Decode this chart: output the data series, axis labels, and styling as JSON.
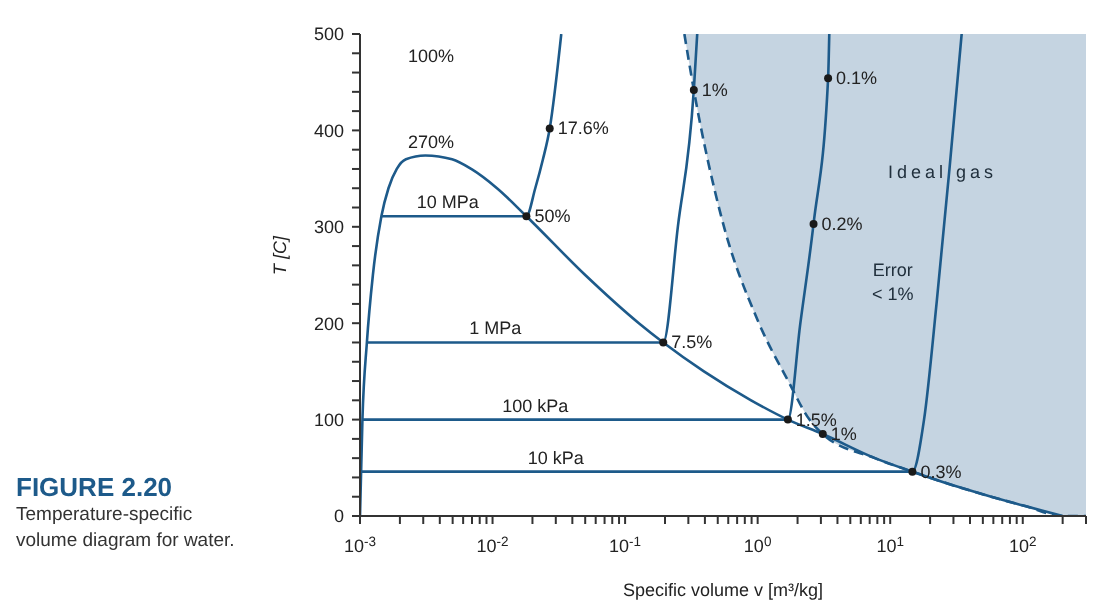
{
  "chart_data": {
    "type": "line",
    "xlabel": "Specific volume v [m³/kg]",
    "ylabel": "T [C]",
    "log": "x",
    "xlim": [
      0.001,
      300
    ],
    "ylim": [
      0,
      500
    ],
    "xticks": [
      {
        "value": 0.001,
        "label": "10$^{-3}$"
      },
      {
        "value": 0.002,
        "label": null
      },
      {
        "value": 0.003,
        "label": null
      },
      {
        "value": 0.004,
        "label": null
      },
      {
        "value": 0.005,
        "label": null
      },
      {
        "value": 0.006,
        "label": null
      },
      {
        "value": 0.007,
        "label": null
      },
      {
        "value": 0.008,
        "label": null
      },
      {
        "value": 0.009,
        "label": null
      },
      {
        "value": 0.01,
        "label": "10$^{-2}$"
      },
      {
        "value": 0.02,
        "label": null
      },
      {
        "value": 0.03,
        "label": null
      },
      {
        "value": 0.04,
        "label": null
      },
      {
        "value": 0.05,
        "label": null
      },
      {
        "value": 0.06,
        "label": null
      },
      {
        "value": 0.07,
        "label": null
      },
      {
        "value": 0.08,
        "label": null
      },
      {
        "value": 0.09,
        "label": null
      },
      {
        "value": 0.1,
        "label": "10$^{-1}$"
      },
      {
        "value": 0.2,
        "label": null
      },
      {
        "value": 0.3,
        "label": null
      },
      {
        "value": 0.4,
        "label": null
      },
      {
        "value": 0.5,
        "label": null
      },
      {
        "value": 0.6,
        "label": null
      },
      {
        "value": 0.7,
        "label": null
      },
      {
        "value": 0.8,
        "label": null
      },
      {
        "value": 0.9,
        "label": null
      },
      {
        "value": 1,
        "label": "10$^{0}$"
      },
      {
        "value": 2,
        "label": null
      },
      {
        "value": 3,
        "label": null
      },
      {
        "value": 4,
        "label": null
      },
      {
        "value": 5,
        "label": null
      },
      {
        "value": 6,
        "label": null
      },
      {
        "value": 7,
        "label": null
      },
      {
        "value": 8,
        "label": null
      },
      {
        "value": 9,
        "label": null
      },
      {
        "value": 10,
        "label": "10$^{1}$"
      },
      {
        "value": 20,
        "label": null
      },
      {
        "value": 30,
        "label": null
      },
      {
        "value": 40,
        "label": null
      },
      {
        "value": 50,
        "label": null
      },
      {
        "value": 60,
        "label": null
      },
      {
        "value": 70,
        "label": null
      },
      {
        "value": 80,
        "label": null
      },
      {
        "value": 90,
        "label": null
      },
      {
        "value": 100,
        "label": "10$^{2}$"
      },
      {
        "value": 200,
        "label": null
      },
      {
        "value": 300,
        "label": null
      }
    ],
    "yticks": [
      0,
      {
        "value": 20,
        "label": null
      },
      {
        "value": 40,
        "label": null
      },
      {
        "value": 60,
        "label": null
      },
      {
        "value": 80,
        "label": null
      },
      100,
      {
        "value": 120,
        "label": null
      },
      {
        "value": 140,
        "label": null
      },
      {
        "value": 160,
        "label": null
      },
      {
        "value": 180,
        "label": null
      },
      200,
      {
        "value": 220,
        "label": null
      },
      {
        "value": 240,
        "label": null
      },
      {
        "value": 260,
        "label": null
      },
      {
        "value": 280,
        "label": null
      },
      300,
      {
        "value": 320,
        "label": null
      },
      {
        "value": 340,
        "label": null
      },
      {
        "value": 360,
        "label": null
      },
      {
        "value": 380,
        "label": null
      },
      400,
      {
        "value": 420,
        "label": null
      },
      {
        "value": 440,
        "label": null
      },
      {
        "value": 460,
        "label": null
      },
      {
        "value": 480,
        "label": null
      },
      500
    ],
    "series": [
      {
        "color": "#1d5a8a",
        "line_style": "dashed",
        "x": [
          0.28,
          0.33,
          0.54,
          1.0,
          1.7,
          2.46,
          3.1,
          7.67,
          14.7,
          32.9,
          57.8,
          106,
          200,
          300
        ],
        "values": [
          500,
          442,
          307,
          203,
          140,
          100,
          85,
          60,
          46,
          30,
          20,
          10,
          0,
          0
        ],
        "lower": [
          500,
          442,
          307,
          203,
          140,
          100,
          85,
          60,
          46,
          30,
          20,
          10,
          0,
          0
        ],
        "upper": [
          500,
          500,
          500,
          500,
          500,
          500,
          500,
          500,
          500,
          500,
          500,
          500,
          500,
          500
        ]
      },
      {
        "color": "#1d5a8a",
        "x": [
          0.001,
          0.001043,
          0.001127,
          0.001251,
          0.00145,
          0.00164,
          0.001895,
          0.00222,
          0.00311,
          0.00495,
          0.0069,
          0.0108,
          0.018,
          0.05,
          0.127,
          0.194,
          0.393,
          0.892,
          1.69,
          3.1,
          7.67,
          14.7,
          32.9,
          57.8,
          106,
          200
        ],
        "values": [
          0,
          100,
          180,
          250,
          311,
          340,
          360,
          370,
          374,
          370,
          360,
          340,
          311,
          250,
          200,
          180,
          150,
          120,
          100,
          85,
          60,
          46,
          30,
          20,
          10,
          0
        ]
      },
      {
        "color": "#1d5a8a",
        "x": [
          0.00145,
          0.018,
          0.021,
          0.024,
          0.027,
          0.033
        ],
        "values": [
          311,
          311,
          340,
          370,
          402,
          500
        ]
      },
      {
        "color": "#1d5a8a",
        "x": [
          0.00113,
          0.194,
          0.25,
          0.33,
          0.35
        ],
        "values": [
          180,
          180,
          300,
          442,
          500
        ]
      },
      {
        "color": "#1d5a8a",
        "x": [
          0.00104,
          1.69,
          2.1,
          2.64,
          3.4,
          3.47
        ],
        "values": [
          100,
          100,
          200,
          303,
          454,
          500
        ]
      },
      {
        "color": "#1d5a8a",
        "x": [
          0.00101,
          14.7,
          18,
          22.5,
          28,
          34.6
        ],
        "values": [
          46,
          46,
          100,
          224,
          360,
          500
        ]
      },
      {
        "type": "scatter",
        "color": "#1a1a1a",
        "marker": "circle",
        "x": [
          0.027,
          0.018,
          0.33,
          0.194,
          2.64,
          3.4,
          1.69,
          3.1,
          14.7
        ],
        "values": [
          402,
          311,
          442,
          180,
          303,
          454,
          100,
          85,
          46
        ]
      }
    ],
    "annotations": [
      {
        "text": "17.6%",
        "x": 0.027,
        "y": 402
      },
      {
        "text": "50%",
        "x": 0.018,
        "y": 311
      },
      {
        "text": "1%",
        "x": 0.33,
        "y": 442
      },
      {
        "text": "7.5%",
        "x": 0.194,
        "y": 180
      },
      {
        "text": "0.2%",
        "x": 2.64,
        "y": 303
      },
      {
        "text": "0.1%",
        "x": 3.4,
        "y": 454
      },
      {
        "text": "1.5%",
        "x": 1.69,
        "y": 100
      },
      {
        "text": "1%",
        "x": 3.1,
        "y": 85
      },
      {
        "text": "0.3%",
        "x": 14.7,
        "y": 46
      },
      {
        "text": "10 MPa",
        "x": 0.0046,
        "y": 311
      },
      {
        "text": "1 MPa",
        "x": 0.0105,
        "y": 180
      },
      {
        "text": "100 kPa",
        "x": 0.021,
        "y": 100
      },
      {
        "text": "10 kPa",
        "x": 0.03,
        "y": 46
      },
      "100%",
      "270%",
      "Ideal gas",
      "Error\n< 1%",
      "FIGURE 2.20",
      "Temperature-specific volume diagram for water."
    ]
  }
}
